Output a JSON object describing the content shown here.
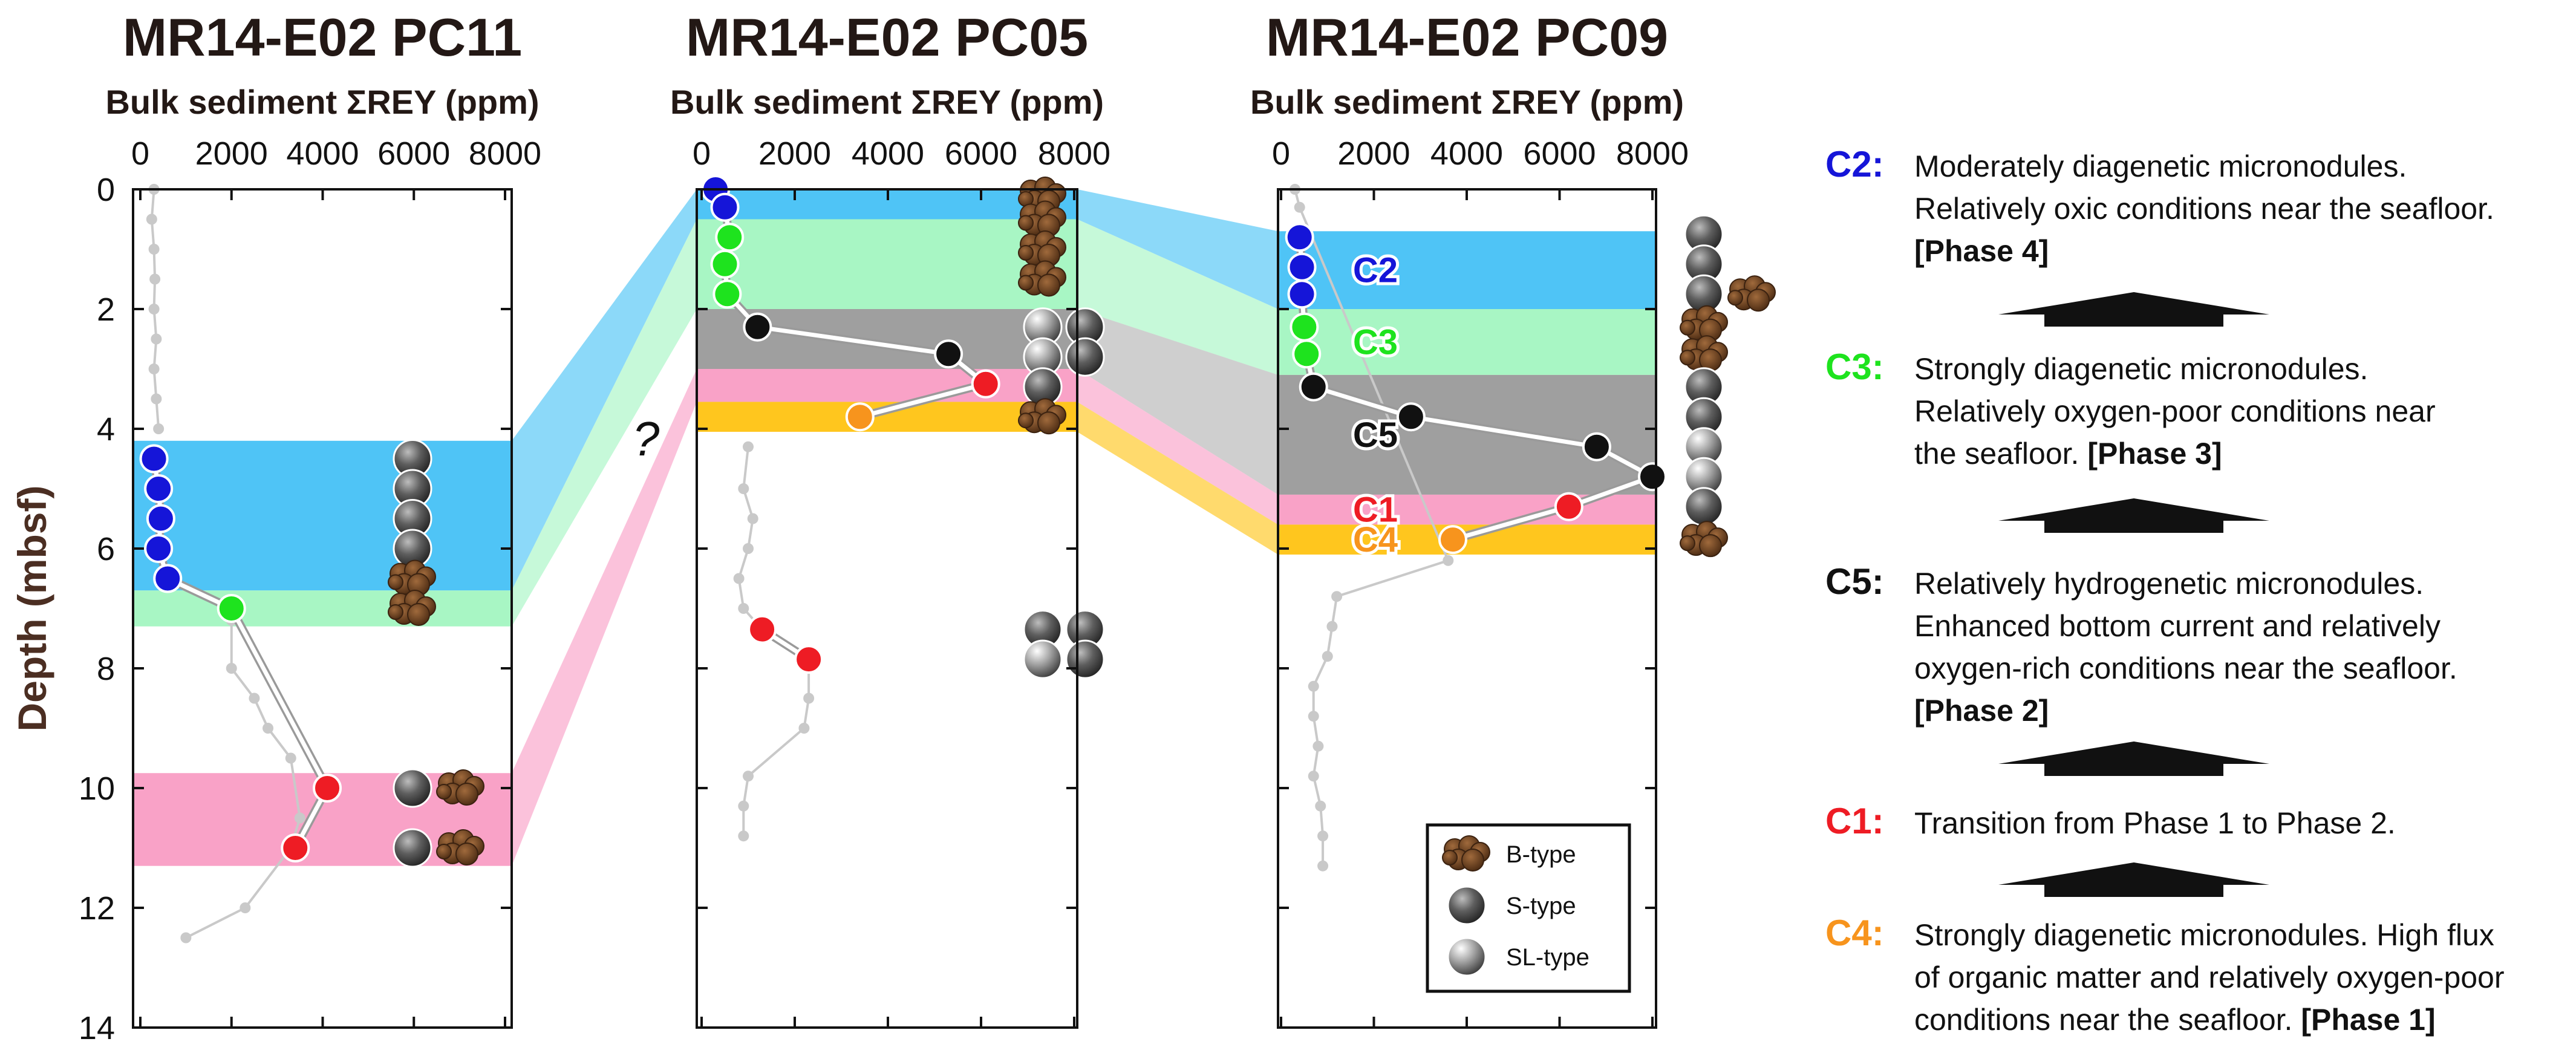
{
  "colors": {
    "C1": "#ee1c24",
    "C2": "#1515d8",
    "C3": "#1ee31e",
    "C4": "#f7941d",
    "C5": "#111111",
    "band_C1": "#f9a2c7",
    "band_C2": "#4fc4f6",
    "band_C3": "#a8f6c4",
    "band_C4": "#ffc61e",
    "band_C5": "#9f9f9f",
    "bulk_line": "#c9c9c9",
    "arrow": "#111111",
    "ylabel": "#4b2e22"
  },
  "y_axis": {
    "label": "Depth (mbsf)",
    "range": [
      0,
      14
    ],
    "ticks": [
      "0",
      "2",
      "4",
      "6",
      "8",
      "10",
      "12",
      "14"
    ]
  },
  "chart_data": [
    {
      "type": "scatter",
      "title": "MR14-E02 PC11",
      "xlabel": "Bulk sediment ΣREY (ppm)",
      "ylabel": "Depth (mbsf)",
      "xlim": [
        0,
        8000
      ],
      "ylim": [
        14,
        0
      ],
      "x_ticks": [
        "0",
        "2000",
        "4000",
        "6000",
        "8000"
      ],
      "bands": [
        {
          "category": "C2",
          "top": 4.2,
          "bottom": 6.7
        },
        {
          "category": "C3",
          "top": 6.7,
          "bottom": 7.3
        },
        {
          "category": "C1",
          "top": 9.75,
          "bottom": 11.3
        }
      ],
      "bulk_points": [
        [
          300,
          0
        ],
        [
          250,
          0.5
        ],
        [
          300,
          1
        ],
        [
          320,
          1.5
        ],
        [
          300,
          2
        ],
        [
          350,
          2.5
        ],
        [
          300,
          3
        ],
        [
          350,
          3.5
        ],
        [
          400,
          4
        ]
      ],
      "bulk_points_lower": [
        [
          2000,
          7.2
        ],
        [
          2000,
          8
        ],
        [
          2500,
          8.5
        ],
        [
          2800,
          9
        ],
        [
          3300,
          9.5
        ],
        [
          3500,
          10.5
        ],
        [
          3300,
          11
        ],
        [
          2300,
          12
        ],
        [
          1000,
          12.5
        ]
      ],
      "sample_points": [
        {
          "x": 300,
          "y": 4.5,
          "category": "C2"
        },
        {
          "x": 400,
          "y": 5.0,
          "category": "C2"
        },
        {
          "x": 450,
          "y": 5.5,
          "category": "C2"
        },
        {
          "x": 400,
          "y": 6.0,
          "category": "C2"
        },
        {
          "x": 600,
          "y": 6.5,
          "category": "C2"
        },
        {
          "x": 2000,
          "y": 7.0,
          "category": "C3"
        },
        {
          "x": 4100,
          "y": 10.0,
          "category": "C1"
        },
        {
          "x": 3400,
          "y": 11.0,
          "category": "C1"
        }
      ],
      "nodules": [
        {
          "depth": 4.5,
          "types": [
            "S"
          ]
        },
        {
          "depth": 5.0,
          "types": [
            "S"
          ]
        },
        {
          "depth": 5.5,
          "types": [
            "S"
          ]
        },
        {
          "depth": 6.0,
          "types": [
            "S"
          ]
        },
        {
          "depth": 6.5,
          "types": [
            "B"
          ]
        },
        {
          "depth": 7.0,
          "types": [
            "B"
          ]
        },
        {
          "depth": 10.0,
          "types": [
            "S",
            "B"
          ]
        },
        {
          "depth": 11.0,
          "types": [
            "S",
            "B"
          ]
        }
      ]
    },
    {
      "type": "scatter",
      "title": "MR14-E02 PC05",
      "xlabel": "Bulk sediment ΣREY (ppm)",
      "ylabel": "Depth (mbsf)",
      "xlim": [
        0,
        8000
      ],
      "ylim": [
        14,
        0
      ],
      "x_ticks": [
        "0",
        "2000",
        "4000",
        "6000",
        "8000"
      ],
      "annotation": "?",
      "bands": [
        {
          "category": "C2",
          "top": 0.0,
          "bottom": 0.5
        },
        {
          "category": "C3",
          "top": 0.5,
          "bottom": 2.0
        },
        {
          "category": "C5",
          "top": 2.0,
          "bottom": 3.0
        },
        {
          "category": "C1",
          "top": 3.0,
          "bottom": 3.55
        },
        {
          "category": "C4",
          "top": 3.55,
          "bottom": 4.05
        }
      ],
      "bulk_points": [
        [
          1000,
          4.3
        ],
        [
          900,
          5
        ],
        [
          1100,
          5.5
        ],
        [
          1000,
          6
        ],
        [
          800,
          6.5
        ],
        [
          900,
          7
        ],
        [
          1300,
          7.35
        ],
        [
          2300,
          7.8
        ],
        [
          2300,
          8.5
        ],
        [
          2200,
          9
        ],
        [
          1000,
          9.8
        ],
        [
          900,
          10.3
        ],
        [
          900,
          10.8
        ]
      ],
      "sample_points": [
        {
          "x": 300,
          "y": 0.0,
          "category": "C2"
        },
        {
          "x": 500,
          "y": 0.3,
          "category": "C2"
        },
        {
          "x": 600,
          "y": 0.8,
          "category": "C3"
        },
        {
          "x": 500,
          "y": 1.25,
          "category": "C3"
        },
        {
          "x": 550,
          "y": 1.75,
          "category": "C3"
        },
        {
          "x": 1200,
          "y": 2.3,
          "category": "C5"
        },
        {
          "x": 5300,
          "y": 2.75,
          "category": "C5"
        },
        {
          "x": 6100,
          "y": 3.25,
          "category": "C1"
        },
        {
          "x": 3400,
          "y": 3.8,
          "category": "C4"
        },
        {
          "x": 1300,
          "y": 7.35,
          "category": "C1"
        },
        {
          "x": 2300,
          "y": 7.85,
          "category": "C1"
        }
      ],
      "nodules": [
        {
          "depth": 0.1,
          "types": [
            "B"
          ]
        },
        {
          "depth": 0.5,
          "types": [
            "B"
          ]
        },
        {
          "depth": 1.0,
          "types": [
            "B"
          ]
        },
        {
          "depth": 1.5,
          "types": [
            "B"
          ]
        },
        {
          "depth": 2.3,
          "types": [
            "SL",
            "S"
          ]
        },
        {
          "depth": 2.8,
          "types": [
            "SL",
            "S"
          ]
        },
        {
          "depth": 3.3,
          "types": [
            "S"
          ]
        },
        {
          "depth": 3.8,
          "types": [
            "B"
          ]
        },
        {
          "depth": 7.35,
          "types": [
            "S",
            "S"
          ]
        },
        {
          "depth": 7.85,
          "types": [
            "SL",
            "S"
          ]
        }
      ]
    },
    {
      "type": "scatter",
      "title": "MR14-E02 PC09",
      "xlabel": "Bulk sediment ΣREY (ppm)",
      "ylabel": "Depth (mbsf)",
      "xlim": [
        0,
        8000
      ],
      "ylim": [
        14,
        0
      ],
      "x_ticks": [
        "0",
        "2000",
        "4000",
        "6000",
        "8000"
      ],
      "bands": [
        {
          "category": "C2",
          "top": 0.7,
          "bottom": 2.0,
          "label": "C2"
        },
        {
          "category": "C3",
          "top": 2.0,
          "bottom": 3.1,
          "label": "C3"
        },
        {
          "category": "C5",
          "top": 3.1,
          "bottom": 5.1,
          "label": "C5"
        },
        {
          "category": "C1",
          "top": 5.1,
          "bottom": 5.6,
          "label": "C1"
        },
        {
          "category": "C4",
          "top": 5.6,
          "bottom": 6.1,
          "label": "C4"
        }
      ],
      "bulk_points": [
        [
          300,
          0
        ],
        [
          400,
          0.3
        ],
        [
          3600,
          6.2
        ],
        [
          1200,
          6.8
        ],
        [
          1100,
          7.3
        ],
        [
          1000,
          7.8
        ],
        [
          700,
          8.3
        ],
        [
          700,
          8.8
        ],
        [
          800,
          9.3
        ],
        [
          700,
          9.8
        ],
        [
          850,
          10.3
        ],
        [
          900,
          10.8
        ],
        [
          900,
          11.3
        ]
      ],
      "sample_points": [
        {
          "x": 400,
          "y": 0.8,
          "category": "C2"
        },
        {
          "x": 450,
          "y": 1.3,
          "category": "C2"
        },
        {
          "x": 450,
          "y": 1.75,
          "category": "C2"
        },
        {
          "x": 500,
          "y": 2.3,
          "category": "C3"
        },
        {
          "x": 550,
          "y": 2.75,
          "category": "C3"
        },
        {
          "x": 700,
          "y": 3.3,
          "category": "C5"
        },
        {
          "x": 2800,
          "y": 3.8,
          "category": "C5"
        },
        {
          "x": 6800,
          "y": 4.3,
          "category": "C5"
        },
        {
          "x": 8000,
          "y": 4.8,
          "category": "C5"
        },
        {
          "x": 6200,
          "y": 5.3,
          "category": "C1"
        },
        {
          "x": 3700,
          "y": 5.85,
          "category": "C4"
        }
      ],
      "nodules": [
        {
          "depth": 0.75,
          "types": [
            "S"
          ]
        },
        {
          "depth": 1.25,
          "types": [
            "S"
          ]
        },
        {
          "depth": 1.75,
          "types": [
            "S",
            "B"
          ]
        },
        {
          "depth": 2.25,
          "types": [
            "B"
          ]
        },
        {
          "depth": 2.75,
          "types": [
            "B"
          ]
        },
        {
          "depth": 3.3,
          "types": [
            "S"
          ]
        },
        {
          "depth": 3.8,
          "types": [
            "S"
          ]
        },
        {
          "depth": 4.3,
          "types": [
            "SL"
          ]
        },
        {
          "depth": 4.8,
          "types": [
            "SL"
          ]
        },
        {
          "depth": 5.3,
          "types": [
            "S"
          ]
        },
        {
          "depth": 5.85,
          "types": [
            "B"
          ]
        }
      ]
    }
  ],
  "legend": [
    {
      "type": "B",
      "label": "B-type"
    },
    {
      "type": "S",
      "label": "S-type"
    },
    {
      "type": "SL",
      "label": "SL-type"
    }
  ],
  "phases": [
    {
      "label": "C2:",
      "category": "C2",
      "lines": [
        [
          {
            "t": "Moderately diagenetic micronodules."
          }
        ],
        [
          {
            "t": "Relatively oxic conditions near the seafloor."
          }
        ],
        [
          {
            "t": "[Phase 4]",
            "b": true
          }
        ]
      ]
    },
    {
      "label": "C3:",
      "category": "C3",
      "lines": [
        [
          {
            "t": "Strongly diagenetic micronodules."
          }
        ],
        [
          {
            "t": "Relatively oxygen-poor conditions near"
          }
        ],
        [
          {
            "t": "the seafloor. "
          },
          {
            "t": "[Phase 3]",
            "b": true
          }
        ]
      ]
    },
    {
      "label": "C5:",
      "category": "C5",
      "lines": [
        [
          {
            "t": "Relatively hydrogenetic micronodules."
          }
        ],
        [
          {
            "t": "Enhanced bottom current and relatively"
          }
        ],
        [
          {
            "t": "oxygen-rich conditions near the seafloor."
          }
        ],
        [
          {
            "t": "[Phase 2]",
            "b": true
          }
        ]
      ]
    },
    {
      "label": "C1:",
      "category": "C1",
      "lines": [
        [
          {
            "t": "Transition from Phase 1 to Phase 2."
          }
        ]
      ]
    },
    {
      "label": "C4:",
      "category": "C4",
      "lines": [
        [
          {
            "t": "Strongly diagenetic micronodules. High flux"
          }
        ],
        [
          {
            "t": "of organic matter and relatively oxygen-poor"
          }
        ],
        [
          {
            "t": "conditions near the seafloor. "
          },
          {
            "t": "[Phase 1]",
            "b": true
          }
        ]
      ]
    }
  ]
}
